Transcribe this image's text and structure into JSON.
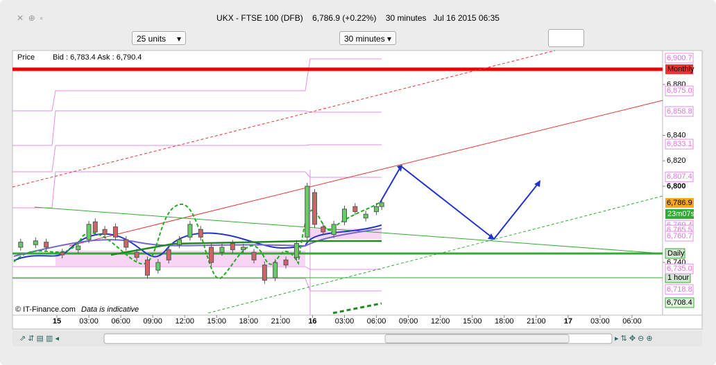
{
  "window": {
    "instrument": "UKX - FTSE 100 (DFB)",
    "quote": "6,786.9 (+0.22%)",
    "interval": "30 minutes",
    "datetime": "Jul 16 2015 06:35"
  },
  "toolbar": {
    "units": "25 units",
    "period": "30 minutes"
  },
  "chart": {
    "price_label": "Price",
    "bid_ask": "Bid : 6,783.4  Ask : 6,790.4",
    "copyright": "© IT-Finance.com",
    "note": "Data is indicative",
    "yticks": [
      {
        "value": 6880,
        "label": "6,880"
      },
      {
        "value": 6840,
        "label": "6,840"
      },
      {
        "value": 6820,
        "label": "6,820"
      },
      {
        "value": 6800,
        "label": "6,800"
      },
      {
        "value": 6740,
        "label": "6,740"
      }
    ],
    "xticks": [
      {
        "value": 0,
        "label": "15"
      },
      {
        "value": 3,
        "label": "03:00"
      },
      {
        "value": 6,
        "label": "06:00"
      },
      {
        "value": 9,
        "label": "09:00"
      },
      {
        "value": 12,
        "label": "12:00"
      },
      {
        "value": 15,
        "label": "15:00"
      },
      {
        "value": 18,
        "label": "18:00"
      },
      {
        "value": 21,
        "label": "21:00"
      },
      {
        "value": 24,
        "label": "16"
      },
      {
        "value": 27,
        "label": "03:00"
      },
      {
        "value": 30,
        "label": "06:00"
      },
      {
        "value": 33,
        "label": "09:00"
      },
      {
        "value": 36,
        "label": "12:00"
      },
      {
        "value": 39,
        "label": "15:00"
      },
      {
        "value": 42,
        "label": "18:00"
      },
      {
        "value": 45,
        "label": "21:00"
      },
      {
        "value": 48,
        "label": "17"
      },
      {
        "value": 51,
        "label": "03:00"
      },
      {
        "value": 54,
        "label": "06:00"
      }
    ],
    "level_labels": [
      {
        "value": 6900.7,
        "label": "6,900.7"
      },
      {
        "value": 6875.0,
        "label": "6,875.0"
      },
      {
        "value": 6858.8,
        "label": "6,858.8"
      },
      {
        "value": 6833.1,
        "label": "6,833.1"
      },
      {
        "value": 6807.4,
        "label": "6,807.4"
      },
      {
        "value": 6769.4,
        "label": "6,769.4"
      },
      {
        "value": 6765.5,
        "label": "6,765.5"
      },
      {
        "value": 6760.7,
        "label": "6,760.7"
      },
      {
        "value": 6735.0,
        "label": "6,735.0"
      },
      {
        "value": 6718.8,
        "label": "6,718.8"
      }
    ],
    "last_price": {
      "value": 6786.9,
      "label": "6,786.9"
    },
    "support": {
      "value": 6708.4,
      "label": "6,708.4"
    },
    "tags": {
      "monthly": "Monthly",
      "countdown": "23m07s",
      "daily": "Daily",
      "hourly": "1 hour"
    },
    "candles": [
      [
        -3.4,
        6752,
        6756
      ],
      [
        -2,
        6754,
        6757
      ],
      [
        -1,
        6756,
        6752
      ],
      [
        0.5,
        6748,
        6746
      ],
      [
        2,
        6750,
        6753
      ],
      [
        3,
        6758,
        6770
      ],
      [
        3.6,
        6772,
        6764
      ],
      [
        4.5,
        6766,
        6762
      ],
      [
        5.5,
        6768,
        6760
      ],
      [
        6.5,
        6758,
        6752
      ],
      [
        7.5,
        6748,
        6744
      ],
      [
        8.5,
        6742,
        6730
      ],
      [
        9.5,
        6734,
        6740
      ],
      [
        10.5,
        6750,
        6742
      ],
      [
        11.5,
        6754,
        6758
      ],
      [
        12.5,
        6760,
        6770
      ],
      [
        13.5,
        6766,
        6760
      ],
      [
        14.5,
        6752,
        6740
      ],
      [
        15.5,
        6748,
        6752
      ],
      [
        16.5,
        6755,
        6750
      ],
      [
        17.5,
        6750,
        6752
      ],
      [
        18.5,
        6748,
        6742
      ],
      [
        19.5,
        6738,
        6726
      ],
      [
        20.5,
        6728,
        6740
      ],
      [
        21.5,
        6742,
        6738
      ],
      [
        22.5,
        6744,
        6755
      ],
      [
        23.5,
        6760,
        6800
      ],
      [
        24.2,
        6795,
        6770
      ],
      [
        25,
        6768,
        6764
      ],
      [
        26,
        6762,
        6770
      ],
      [
        27,
        6772,
        6782
      ],
      [
        28,
        6784,
        6780
      ],
      [
        29,
        6775,
        6778
      ],
      [
        30,
        6780,
        6784
      ],
      [
        30.5,
        6784,
        6787
      ]
    ]
  }
}
